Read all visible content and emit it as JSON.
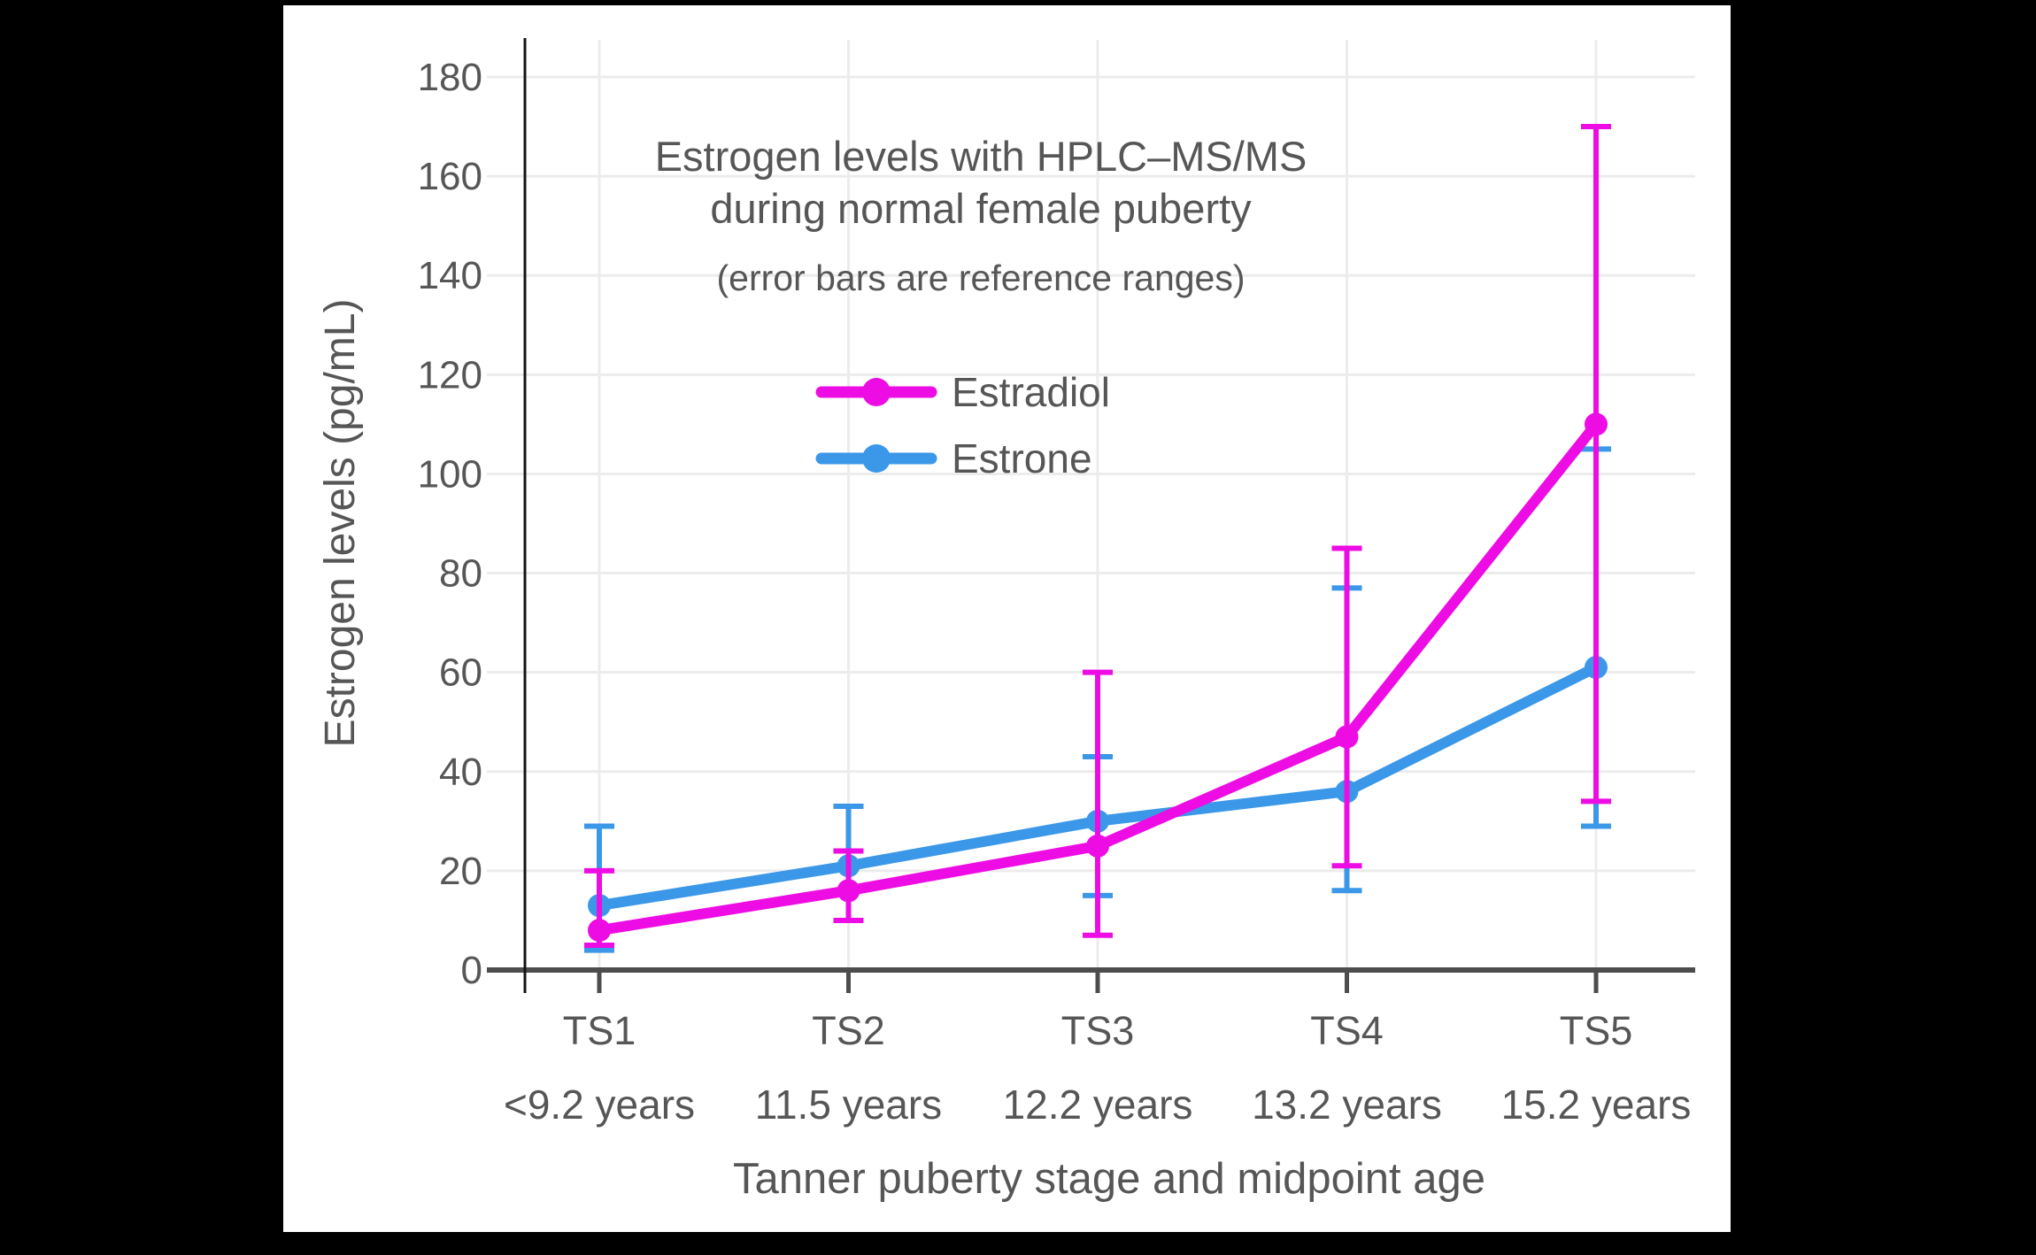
{
  "page": {
    "colors": {
      "background": "#000000",
      "canvas": "#ffffff",
      "grid": "#ececec",
      "x_axis": "#4d4d4d",
      "y_axis": "#141414",
      "text": "#565656"
    }
  },
  "legend": {
    "labels": [
      "Estradiol",
      "Estrone"
    ]
  },
  "chart_data": {
    "type": "line",
    "title": "Estrogen levels with HPLC–MS/MS",
    "title_line2": "during normal female puberty",
    "subtitle": "(error bars are reference ranges)",
    "xlabel": "Tanner puberty stage and midpoint age",
    "ylabel": "Estrogen levels (pg/mL)",
    "categories": [
      "TS1",
      "TS2",
      "TS3",
      "TS4",
      "TS5"
    ],
    "category_sublabels": [
      "<9.2 years",
      "11.5 years",
      "12.2 years",
      "13.2 years",
      "15.2 years"
    ],
    "yticks": [
      0,
      20,
      40,
      60,
      80,
      100,
      120,
      140,
      160,
      180
    ],
    "ylim": [
      0,
      187
    ],
    "grid": true,
    "legend_position": "upper-center-inside",
    "error_bar_meaning": "reference ranges",
    "series": [
      {
        "name": "Estrone",
        "color": "#3B97E8",
        "values": [
          13,
          21,
          30,
          36,
          61
        ],
        "error_low": [
          4,
          10,
          15,
          16,
          29
        ],
        "error_high": [
          29,
          33,
          43,
          77,
          105
        ]
      },
      {
        "name": "Estradiol",
        "color": "#EE0CE4",
        "values": [
          8,
          16,
          25,
          47,
          110
        ],
        "error_low": [
          5,
          10,
          7,
          21,
          34
        ],
        "error_high": [
          20,
          24,
          60,
          85,
          170
        ]
      }
    ]
  }
}
